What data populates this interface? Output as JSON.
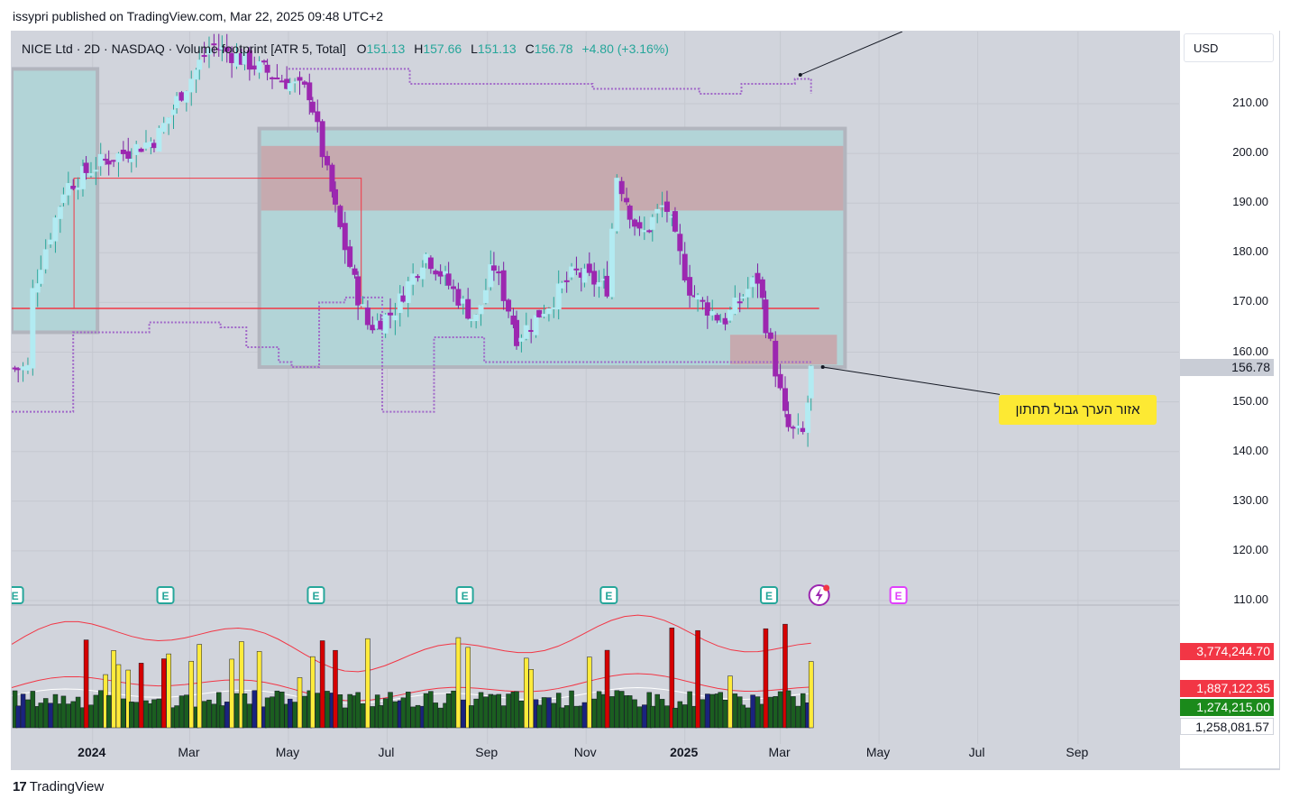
{
  "header": {
    "text": "issypri published on TradingView.com, Mar 22, 2025 09:48 UTC+2"
  },
  "legend": {
    "symbol": "NICE Ltd · 2D · NASDAQ · Volume footprint [ATR 5, Total]",
    "open_label": "O",
    "open": "151.13",
    "high_label": "H",
    "high": "157.66",
    "low_label": "L",
    "low": "151.13",
    "close_label": "C",
    "close": "156.78",
    "change": "+4.80 (+3.16%)"
  },
  "price_scale": {
    "currency": "USD",
    "labels": [
      "210.00",
      "200.00",
      "190.00",
      "180.00",
      "170.00",
      "160.00",
      "150.00",
      "140.00",
      "130.00",
      "120.00",
      "110.00"
    ],
    "last_price": "156.78",
    "volume_labels": {
      "upper_band": "3,774,244.70",
      "middle_band": "1,887,122.35",
      "volume": "1,274,215.00",
      "ma": "1,258,081.57"
    }
  },
  "time_axis": {
    "labels": [
      "2024",
      "Mar",
      "May",
      "Jul",
      "Sep",
      "Nov",
      "2025",
      "Mar",
      "May",
      "Jul",
      "Sep"
    ]
  },
  "annotation": {
    "text": "אזור הערך גבול תחתון"
  },
  "footer": {
    "logo_mark": "17",
    "logo_text": "TradingView"
  },
  "colors": {
    "bg": "#d1d4dc",
    "value_area": "#b2d4d7",
    "supply_zone": "#c9a2a8",
    "support_line": "#f23645",
    "candle_up": "#b2ebf2",
    "candle_down": "#9c27b0",
    "vol_green": "#1b5e20",
    "vol_yellow": "#ffeb3b",
    "vol_red": "#d50000",
    "vol_blue": "#1a237e",
    "callout": "#fde933"
  },
  "chart_data": {
    "type": "candlestick",
    "symbol": "NICE",
    "interval": "2D",
    "ylim": [
      105,
      217
    ],
    "y_ticks": [
      110,
      120,
      130,
      140,
      150,
      160,
      170,
      180,
      190,
      200,
      210
    ],
    "x_ticks": [
      "2024",
      "Mar",
      "May",
      "Jul",
      "Sep",
      "Nov",
      "2025",
      "Mar",
      "May",
      "Jul",
      "Sep"
    ],
    "last_bar": {
      "open": 151.13,
      "high": 157.66,
      "low": 151.13,
      "close": 156.78,
      "change": 4.8,
      "change_pct": 3.16
    },
    "horizontal_line": 168.8,
    "value_area_box": {
      "from": "2024-04",
      "to": "2025-04",
      "low": 157,
      "high": 205
    },
    "supply_zone": {
      "low": 188.5,
      "high": 201.5
    },
    "lower_value_zone": {
      "low": 157.5,
      "high": 163.5
    },
    "close_path": [
      {
        "x": "2023-11-25",
        "y": 172
      },
      {
        "x": "2023-12-15",
        "y": 193
      },
      {
        "x": "2024-01-05",
        "y": 198
      },
      {
        "x": "2024-01-20",
        "y": 200
      },
      {
        "x": "2024-02-10",
        "y": 203
      },
      {
        "x": "2024-02-25",
        "y": 212
      },
      {
        "x": "2024-03-15",
        "y": 222
      },
      {
        "x": "2024-05-15",
        "y": 212
      },
      {
        "x": "2024-05-25",
        "y": 196
      },
      {
        "x": "2024-06-10",
        "y": 175
      },
      {
        "x": "2024-06-20",
        "y": 165
      },
      {
        "x": "2024-07-05",
        "y": 168
      },
      {
        "x": "2024-07-25",
        "y": 180
      },
      {
        "x": "2024-08-10",
        "y": 173
      },
      {
        "x": "2024-08-25",
        "y": 166
      },
      {
        "x": "2024-09-05",
        "y": 178
      },
      {
        "x": "2024-09-20",
        "y": 163
      },
      {
        "x": "2024-10-10",
        "y": 170
      },
      {
        "x": "2024-10-25",
        "y": 176
      },
      {
        "x": "2024-11-15",
        "y": 173
      },
      {
        "x": "2024-11-20",
        "y": 196
      },
      {
        "x": "2024-12-05",
        "y": 183
      },
      {
        "x": "2024-12-20",
        "y": 190
      },
      {
        "x": "2025-01-05",
        "y": 172
      },
      {
        "x": "2025-01-25",
        "y": 166
      },
      {
        "x": "2025-02-15",
        "y": 175
      },
      {
        "x": "2025-02-25",
        "y": 159
      },
      {
        "x": "2025-03-05",
        "y": 145
      },
      {
        "x": "2025-03-15",
        "y": 143
      },
      {
        "x": "2025-03-21",
        "y": 156.78
      }
    ],
    "volume": {
      "ylim": [
        0,
        4200000
      ],
      "upper_band": 3774244.7,
      "middle_band": 1887122.35,
      "last_volume": 1274215.0,
      "volume_ma": 1258081.57
    }
  }
}
